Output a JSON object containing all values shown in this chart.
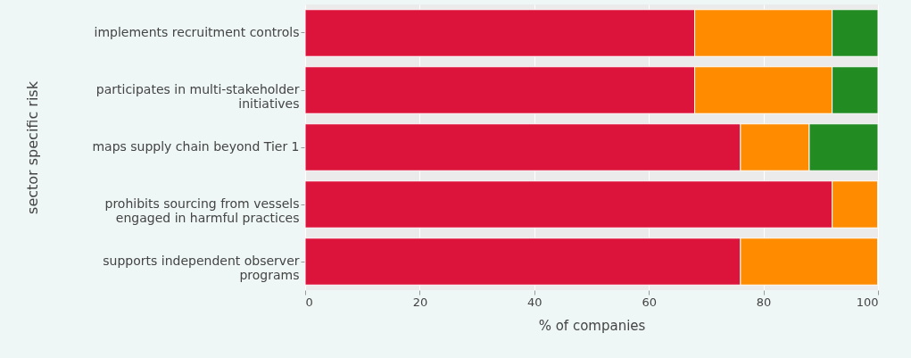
{
  "chart_data": {
    "type": "bar",
    "orientation": "horizontal",
    "stacked": true,
    "ylabel": "sector specific risk",
    "xlabel": "% of companies",
    "categories": [
      "implements recruitment controls",
      "participates in multi-stakeholder initiatives",
      "maps supply chain beyond Tier 1",
      "prohibits sourcing from vessels engaged in harmful practices",
      "supports independent observer programs"
    ],
    "series": [
      {
        "color": "#dc143c",
        "values": [
          68,
          68,
          76,
          92,
          76
        ]
      },
      {
        "color": "#ff8c00",
        "values": [
          24,
          24,
          12,
          8,
          24
        ]
      },
      {
        "color": "#228b22",
        "values": [
          8,
          8,
          12,
          0,
          0
        ]
      }
    ],
    "xlim": [
      0,
      100
    ],
    "xticks": [
      0,
      20,
      40,
      60,
      80,
      100
    ],
    "grid": "x"
  }
}
